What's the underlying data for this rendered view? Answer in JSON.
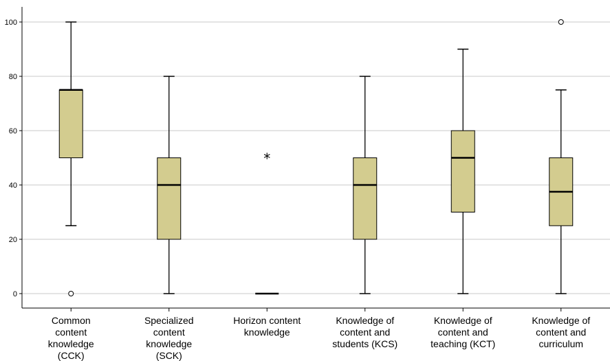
{
  "chart_data": {
    "type": "boxplot",
    "title": "",
    "xlabel": "",
    "ylabel": "",
    "ylim": [
      0,
      100
    ],
    "yticks": [
      0,
      20,
      40,
      60,
      80,
      100
    ],
    "grid": true,
    "box_color": "#D3CC8F",
    "line_color": "#000000",
    "grid_color": "#C8C8C8",
    "categories": [
      {
        "label_lines": [
          "Common",
          "content",
          "knowledge",
          "(CCK)"
        ],
        "whisker_low": 25,
        "q1": 50,
        "median": 75,
        "q3": 75,
        "whisker_high": 100,
        "outliers": [
          0
        ],
        "extremes": []
      },
      {
        "label_lines": [
          "Specialized",
          "content",
          "knowledge",
          "(SCK)"
        ],
        "whisker_low": 0,
        "q1": 20,
        "median": 40,
        "q3": 50,
        "whisker_high": 80,
        "outliers": [],
        "extremes": []
      },
      {
        "label_lines": [
          "Horizon content",
          "knowledge"
        ],
        "whisker_low": 0,
        "q1": 0,
        "median": 0,
        "q3": 0,
        "whisker_high": 0,
        "outliers": [],
        "extremes": [
          50
        ]
      },
      {
        "label_lines": [
          "Knowledge of",
          "content and",
          "students (KCS)"
        ],
        "whisker_low": 0,
        "q1": 20,
        "median": 40,
        "q3": 50,
        "whisker_high": 80,
        "outliers": [],
        "extremes": []
      },
      {
        "label_lines": [
          "Knowledge of",
          "content and",
          "teaching (KCT)"
        ],
        "whisker_low": 0,
        "q1": 30,
        "median": 50,
        "q3": 60,
        "whisker_high": 90,
        "outliers": [],
        "extremes": []
      },
      {
        "label_lines": [
          "Knowledge of",
          "content and",
          "curriculum"
        ],
        "whisker_low": 0,
        "q1": 25,
        "median": 37.5,
        "q3": 50,
        "whisker_high": 75,
        "outliers": [
          100
        ],
        "extremes": []
      }
    ]
  }
}
